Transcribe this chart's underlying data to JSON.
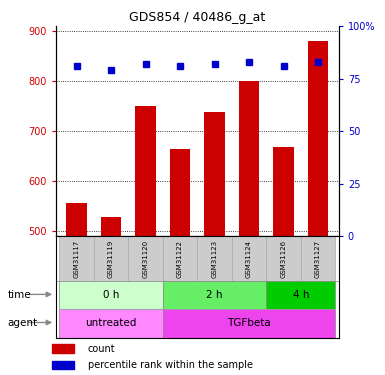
{
  "title": "GDS854 / 40486_g_at",
  "samples": [
    "GSM31117",
    "GSM31119",
    "GSM31120",
    "GSM31122",
    "GSM31123",
    "GSM31124",
    "GSM31126",
    "GSM31127"
  ],
  "counts": [
    557,
    528,
    750,
    665,
    738,
    800,
    668,
    880
  ],
  "percentiles": [
    81,
    79,
    82,
    81,
    82,
    83,
    81,
    83
  ],
  "bar_color": "#cc0000",
  "dot_color": "#0000cc",
  "ylim_left": [
    490,
    910
  ],
  "ylim_right": [
    0,
    100
  ],
  "yticks_left": [
    500,
    600,
    700,
    800,
    900
  ],
  "yticks_right": [
    0,
    25,
    50,
    75,
    100
  ],
  "time_groups": [
    {
      "label": "0 h",
      "start": 0,
      "end": 3,
      "color": "#ccffcc"
    },
    {
      "label": "2 h",
      "start": 3,
      "end": 6,
      "color": "#66ee66"
    },
    {
      "label": "4 h",
      "start": 6,
      "end": 8,
      "color": "#00cc00"
    }
  ],
  "agent_groups": [
    {
      "label": "untreated",
      "start": 0,
      "end": 3,
      "color": "#ff88ff"
    },
    {
      "label": "TGFbeta",
      "start": 3,
      "end": 8,
      "color": "#ee44ee"
    }
  ],
  "legend_count_color": "#cc0000",
  "legend_dot_color": "#0000cc",
  "background_color": "#ffffff",
  "plot_bg_color": "#ffffff",
  "grid_color": "#000000",
  "time_label": "time",
  "agent_label": "agent"
}
